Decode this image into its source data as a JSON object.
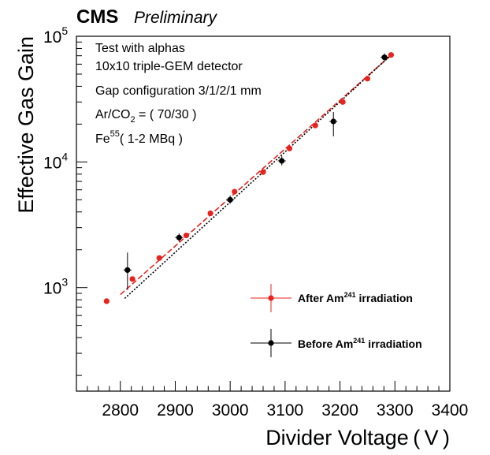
{
  "chart_data": {
    "type": "scatter",
    "header": {
      "experiment": "CMS",
      "status": "Preliminary"
    },
    "xlabel": "Divider Voltage ( V )",
    "ylabel": "Effective Gas Gain",
    "xlim": [
      2720,
      3400
    ],
    "ylim": [
      150,
      100000
    ],
    "yscale": "log",
    "x_ticks": [
      2800,
      2900,
      3000,
      3100,
      3200,
      3300,
      3400
    ],
    "y_ticks": [
      {
        "value": 1000,
        "base": "10",
        "exp": "3"
      },
      {
        "value": 10000,
        "base": "10",
        "exp": "4"
      },
      {
        "value": 100000,
        "base": "10",
        "exp": "5"
      }
    ],
    "grid": false,
    "legend_position": "bottom-right",
    "annotations": [
      {
        "text": "Test with alphas"
      },
      {
        "text": "10x10 triple-GEM detector"
      },
      {
        "text": "Gap configuration 3/1/2/1 mm"
      },
      {
        "text": "Ar/CO",
        "sub": "2",
        "after": " = ( 70/30 )"
      },
      {
        "text": "Fe",
        "sup": "55",
        "after": "( 1-2 MBq )"
      }
    ],
    "series": [
      {
        "name": "After Am241 irradiation",
        "legend": {
          "pre": "After Am",
          "sup": "241",
          "post": " irradiation"
        },
        "color": "#e8221d",
        "x": [
          2775,
          2822,
          2871,
          2920,
          2964,
          3008,
          3060,
          3108,
          3155,
          3205,
          3250,
          3293
        ],
        "y": [
          780,
          1170,
          1720,
          2600,
          3900,
          5800,
          8300,
          12800,
          19500,
          30000,
          46000,
          71000
        ],
        "fit": {
          "x": [
            2800,
            3295
          ],
          "y": [
            880,
            72000
          ]
        }
      },
      {
        "name": "Before Am241 irradiation",
        "legend": {
          "pre": "Before Am",
          "sup": "241",
          "post": " irradiation"
        },
        "color": "#000000",
        "x": [
          2813,
          2907,
          3000,
          3094,
          3188,
          3281
        ],
        "y": [
          1380,
          2500,
          5000,
          10200,
          21000,
          68000
        ],
        "yerr_low": [
          420,
          180,
          350,
          800,
          5000,
          5000
        ],
        "yerr_high": [
          520,
          200,
          400,
          900,
          4000,
          5000
        ],
        "fit": {
          "x": [
            2808,
            3290
          ],
          "y": [
            820,
            69000
          ]
        }
      }
    ]
  }
}
